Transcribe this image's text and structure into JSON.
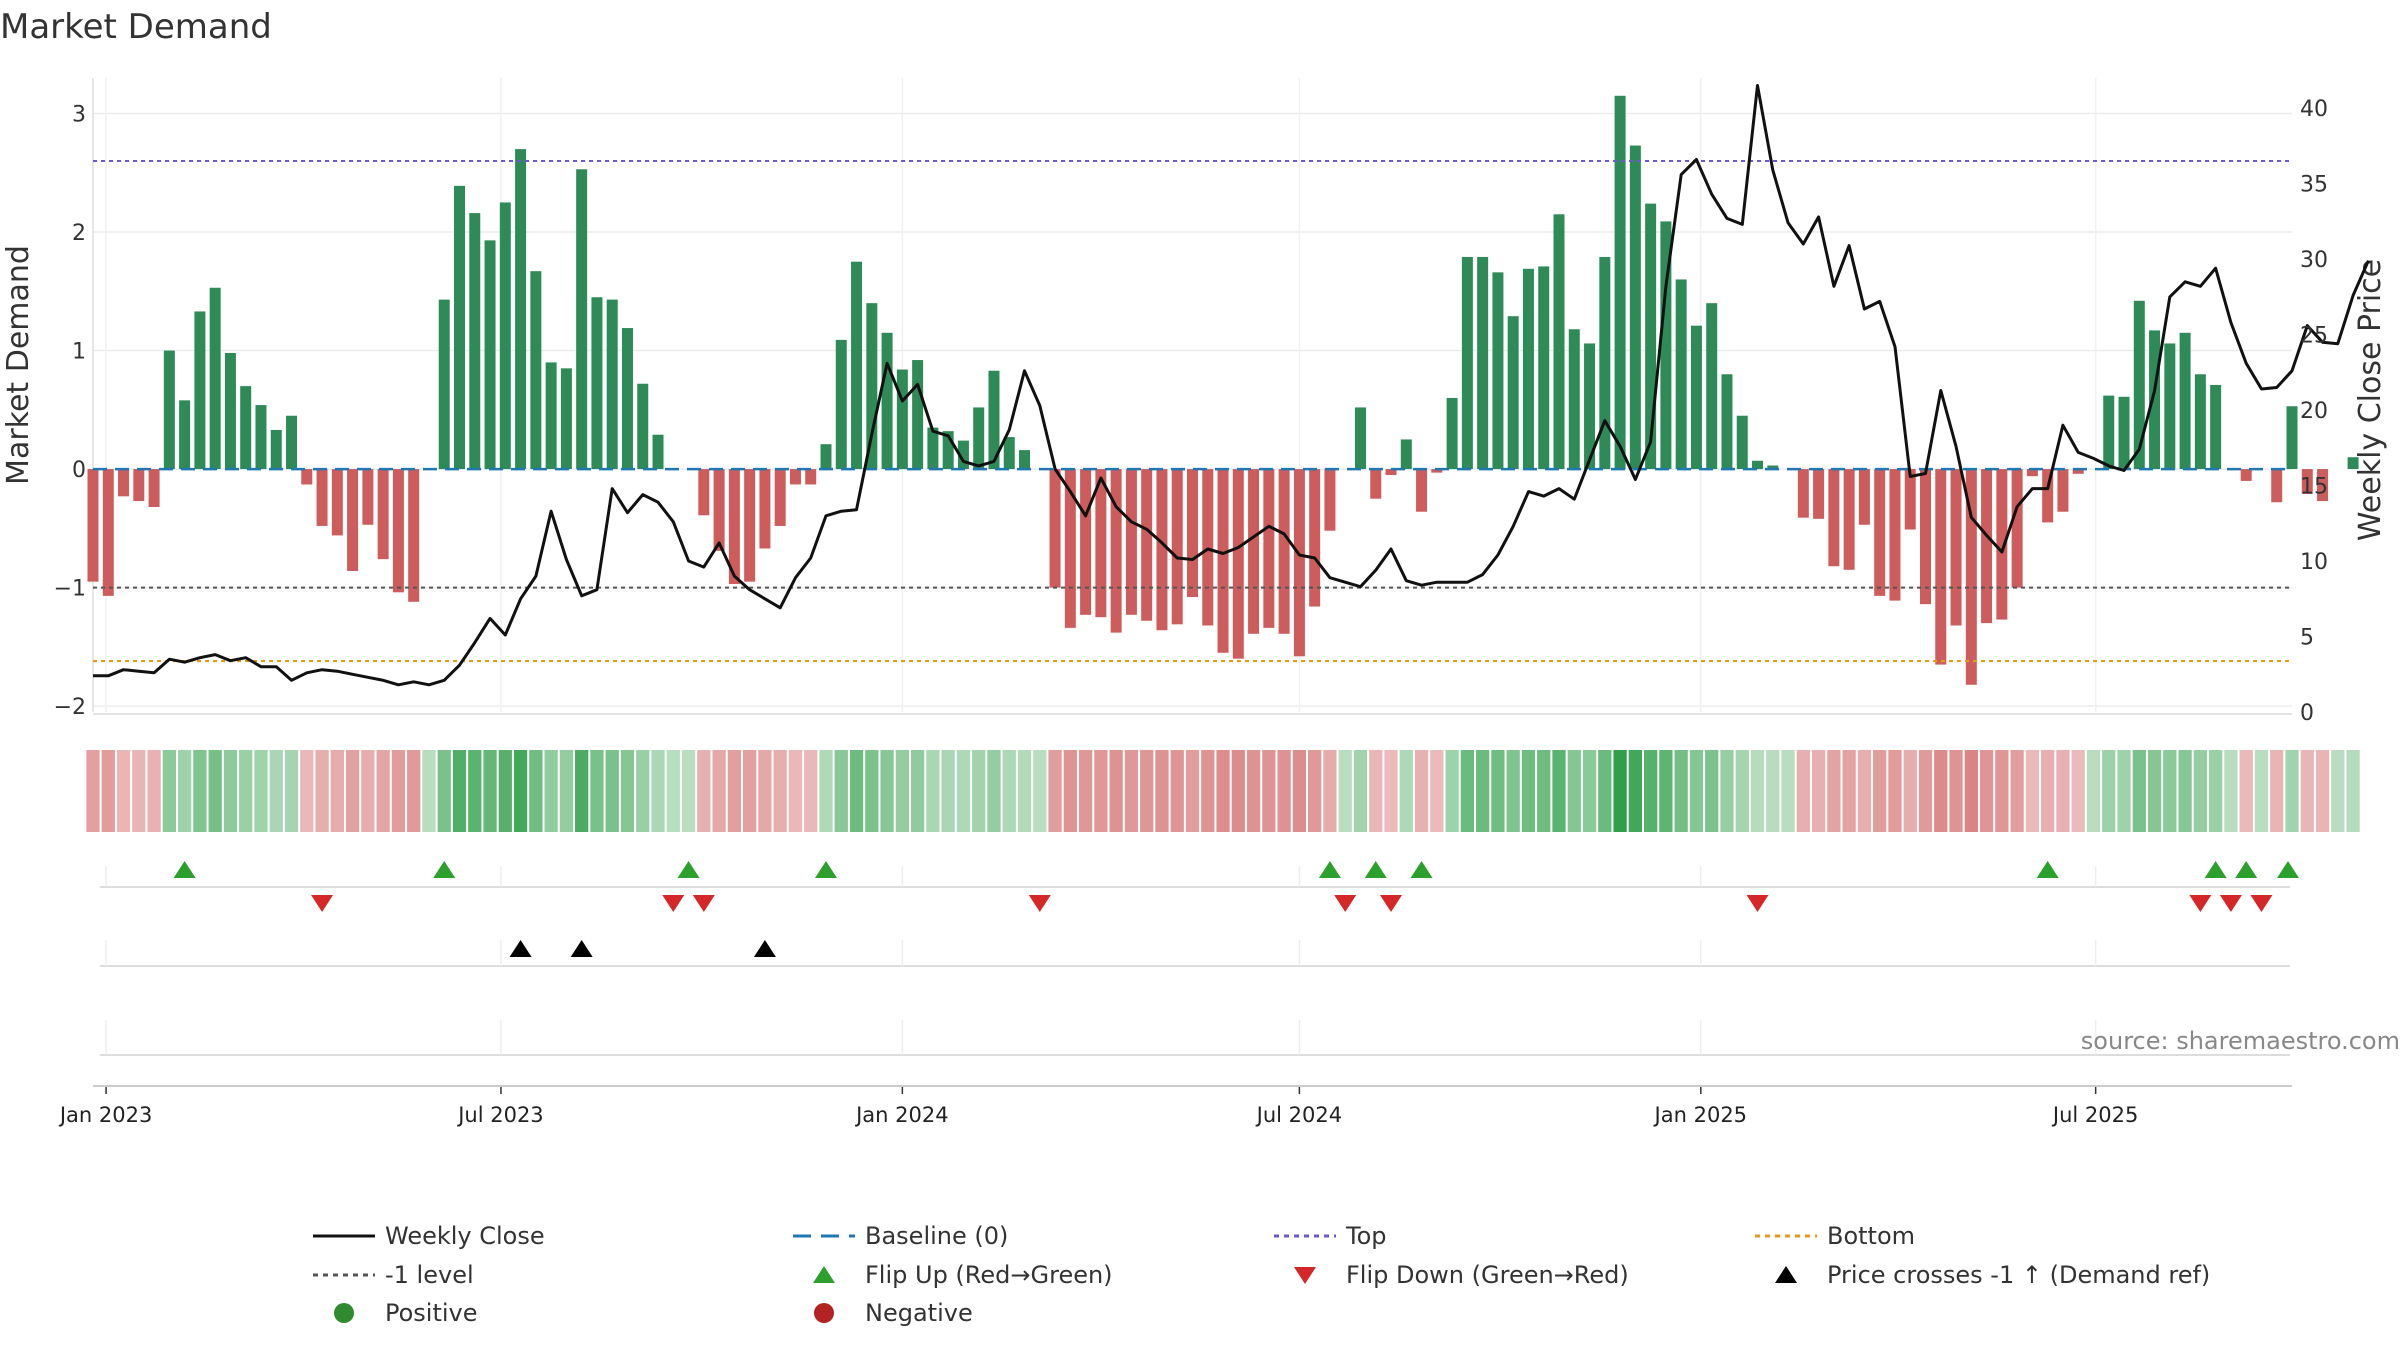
{
  "chart_data": {
    "type": "bar",
    "title": "Market Demand",
    "ylabel": "Market Demand",
    "y2label": "Weekly Close Price",
    "ylim": [
      -2.05,
      3.3
    ],
    "y2lim": [
      0,
      42
    ],
    "yticks": [
      -2,
      -1,
      0,
      1,
      2,
      3
    ],
    "y2ticks": [
      0,
      5,
      10,
      15,
      20,
      25,
      30,
      35,
      40
    ],
    "x_start": "2022-12-26",
    "x_end": "2025-09-29",
    "x_ticks": [
      {
        "date": "2023-01-01",
        "label": "Jan 2023"
      },
      {
        "date": "2023-07-01",
        "label": "Jul 2023"
      },
      {
        "date": "2024-01-01",
        "label": "Jan 2024"
      },
      {
        "date": "2024-07-01",
        "label": "Jul 2024"
      },
      {
        "date": "2025-01-01",
        "label": "Jan 2025"
      },
      {
        "date": "2025-07-01",
        "label": "Jul 2025"
      }
    ],
    "first_week": "2022-12-26",
    "demand": [
      -0.95,
      -1.07,
      -0.23,
      -0.27,
      -0.32,
      1.0,
      0.58,
      1.33,
      1.53,
      0.98,
      0.7,
      0.54,
      0.33,
      0.45,
      -0.13,
      -0.48,
      -0.56,
      -0.86,
      -0.47,
      -0.76,
      -1.04,
      -1.12,
      0.0,
      1.43,
      2.39,
      2.16,
      1.93,
      2.25,
      2.7,
      1.67,
      0.9,
      0.85,
      2.53,
      1.45,
      1.43,
      1.19,
      0.72,
      0.29,
      0.0,
      0.0,
      -0.39,
      -0.69,
      -0.97,
      -0.95,
      -0.67,
      -0.48,
      -0.13,
      -0.13,
      0.21,
      1.09,
      1.75,
      1.4,
      1.15,
      0.84,
      0.92,
      0.35,
      0.32,
      0.24,
      0.52,
      0.83,
      0.27,
      0.16,
      0.0,
      -1.0,
      -1.34,
      -1.23,
      -1.25,
      -1.38,
      -1.23,
      -1.28,
      -1.36,
      -1.31,
      -1.08,
      -1.32,
      -1.55,
      -1.6,
      -1.39,
      -1.34,
      -1.39,
      -1.58,
      -1.16,
      -0.52,
      0.0,
      0.52,
      -0.25,
      -0.05,
      0.25,
      -0.36,
      -0.03,
      0.6,
      1.79,
      1.79,
      1.66,
      1.29,
      1.69,
      1.71,
      2.15,
      1.18,
      1.06,
      1.79,
      3.15,
      2.73,
      2.24,
      2.09,
      1.6,
      1.21,
      1.4,
      0.8,
      0.45,
      0.07,
      0.03,
      0.0,
      -0.41,
      -0.42,
      -0.82,
      -0.85,
      -0.47,
      -1.07,
      -1.11,
      -0.51,
      -1.14,
      -1.65,
      -1.32,
      -1.82,
      -1.3,
      -1.27,
      -1.0,
      -0.06,
      -0.45,
      -0.36,
      -0.04,
      0.0,
      0.62,
      0.61,
      1.42,
      1.17,
      1.06,
      1.15,
      0.8,
      0.71,
      0.0,
      -0.1,
      0.0,
      -0.28,
      0.53,
      -0.21,
      -0.27,
      0.0,
      0.1
    ],
    "close": [
      2.4,
      2.4,
      2.8,
      2.7,
      2.6,
      3.5,
      3.3,
      3.6,
      3.8,
      3.4,
      3.6,
      3.0,
      3.0,
      2.1,
      2.6,
      2.8,
      2.7,
      2.5,
      2.3,
      2.1,
      1.8,
      2.0,
      1.8,
      2.1,
      3.1,
      4.6,
      6.2,
      5.1,
      7.5,
      9.0,
      13.3,
      10.1,
      7.7,
      8.1,
      14.8,
      13.2,
      14.4,
      13.9,
      12.6,
      10.0,
      9.6,
      11.2,
      9.0,
      8.1,
      7.5,
      6.9,
      8.9,
      10.2,
      13.0,
      13.3,
      13.4,
      18.4,
      23.1,
      20.6,
      21.7,
      18.6,
      18.3,
      16.6,
      16.3,
      16.6,
      18.7,
      22.6,
      20.3,
      16.1,
      14.6,
      13.0,
      15.5,
      13.6,
      12.6,
      12.1,
      11.2,
      10.2,
      10.1,
      10.8,
      10.5,
      10.9,
      11.6,
      12.3,
      11.8,
      10.4,
      10.2,
      8.9,
      8.6,
      8.3,
      9.4,
      10.8,
      8.7,
      8.4,
      8.6,
      8.6,
      8.6,
      9.1,
      10.4,
      12.3,
      14.6,
      14.3,
      14.8,
      14.1,
      16.7,
      19.3,
      17.6,
      15.4,
      17.9,
      28.2,
      35.6,
      36.6,
      34.3,
      32.7,
      32.3,
      41.5,
      35.9,
      32.4,
      31.0,
      32.8,
      28.2,
      30.9,
      26.7,
      27.2,
      24.2,
      15.6,
      15.8,
      21.3,
      17.6,
      12.9,
      11.7,
      10.6,
      13.6,
      14.8,
      14.8,
      19.0,
      17.2,
      16.8,
      16.3,
      16.0,
      17.4,
      21.3,
      27.5,
      28.5,
      28.2,
      29.4,
      25.8,
      23.1,
      21.4,
      21.5,
      22.6,
      25.6,
      24.5,
      24.4,
      27.6,
      29.9
    ],
    "top_level": 2.6,
    "minus1_level": -1.0,
    "bottom_level": -1.62,
    "baseline_level": 0,
    "flip_up_dates": [
      "2023-02-06",
      "2023-06-05",
      "2023-09-25",
      "2023-11-27",
      "2024-07-15",
      "2024-08-05",
      "2024-08-26",
      "2025-06-09",
      "2025-08-25",
      "2025-09-08",
      "2025-10-06"
    ],
    "flip_down_dates": [
      "2023-04-10",
      "2023-09-18",
      "2023-10-02",
      "2024-03-04",
      "2024-07-22",
      "2024-08-12",
      "2025-01-27",
      "2025-08-18",
      "2025-09-01",
      "2025-09-15"
    ],
    "price_cross_dates": [
      "2023-07-10",
      "2023-08-07",
      "2023-10-30"
    ],
    "legend": [
      {
        "label": "Weekly Close",
        "kind": "line",
        "color": "#111111"
      },
      {
        "label": "Baseline (0)",
        "kind": "dash",
        "color": "#1f77b4"
      },
      {
        "label": "Top",
        "kind": "dot",
        "color": "#6a5acd"
      },
      {
        "label": "Bottom",
        "kind": "dot",
        "color": "#e69a1a"
      },
      {
        "label": "-1 level",
        "kind": "dot",
        "color": "#555555"
      },
      {
        "label": "Flip Up (Red→Green)",
        "kind": "tri-up",
        "color": "#2ca02c"
      },
      {
        "label": "Flip Down (Green→Red)",
        "kind": "tri-down",
        "color": "#d62728"
      },
      {
        "label": "Price crosses -1 ↑ (Demand ref)",
        "kind": "tri-up",
        "color": "#000000"
      },
      {
        "label": "Positive",
        "kind": "circle",
        "color": "#2e8b2e"
      },
      {
        "label": "Negative",
        "kind": "circle",
        "color": "#b22222"
      }
    ],
    "source": "source: sharemaestro.com"
  },
  "colors": {
    "positive_bar": "#2e8b57",
    "negative_bar": "#cd5c5c",
    "price_line": "#111111",
    "baseline": "#1f77b4",
    "top": "#6a5acd",
    "bottom": "#e69a1a",
    "minus1": "#555555",
    "flip_up": "#2ca02c",
    "flip_down": "#d62728",
    "cross": "#000000"
  }
}
